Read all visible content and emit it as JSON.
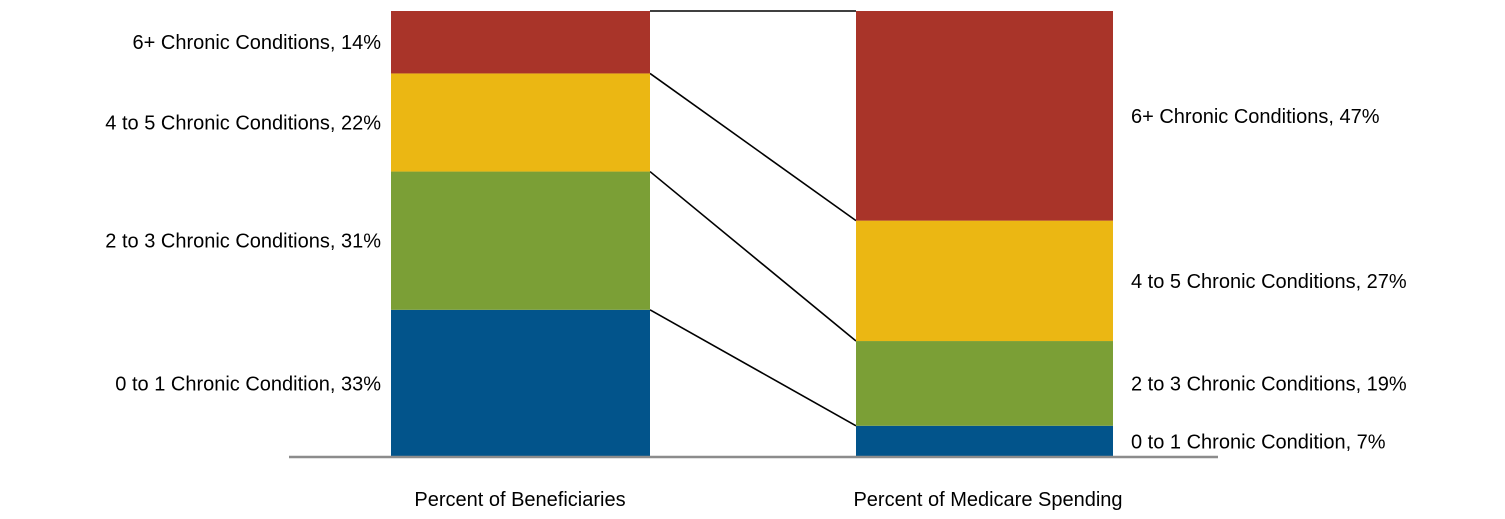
{
  "chart_data": {
    "type": "bar",
    "stacked": true,
    "title": "",
    "xlabel": "",
    "ylabel": "",
    "ylim": [
      0,
      100
    ],
    "grid": false,
    "categories": [
      "Percent of Beneficiaries",
      "Percent of Medicare Spending"
    ],
    "series": [
      {
        "key": "c0to1",
        "color": "#02548b",
        "values": [
          33,
          7
        ],
        "labels": [
          "0 to 1 Chronic Condition, 33%",
          "0 to 1 Chronic Condition, 7%"
        ]
      },
      {
        "key": "c2to3",
        "color": "#7b9f36",
        "values": [
          31,
          19
        ],
        "labels": [
          "2 to 3 Chronic Conditions, 31%",
          "2 to 3 Chronic Conditions, 19%"
        ]
      },
      {
        "key": "c4to5",
        "color": "#ebb713",
        "values": [
          22,
          27
        ],
        "labels": [
          "4 to 5 Chronic Conditions, 22%",
          "4 to 5 Chronic Conditions, 27%"
        ]
      },
      {
        "key": "c6plus",
        "color": "#a93429",
        "values": [
          14,
          47
        ],
        "labels": [
          "6+ Chronic Conditions, 14%",
          "6+ Chronic Conditions, 47%"
        ]
      }
    ]
  }
}
